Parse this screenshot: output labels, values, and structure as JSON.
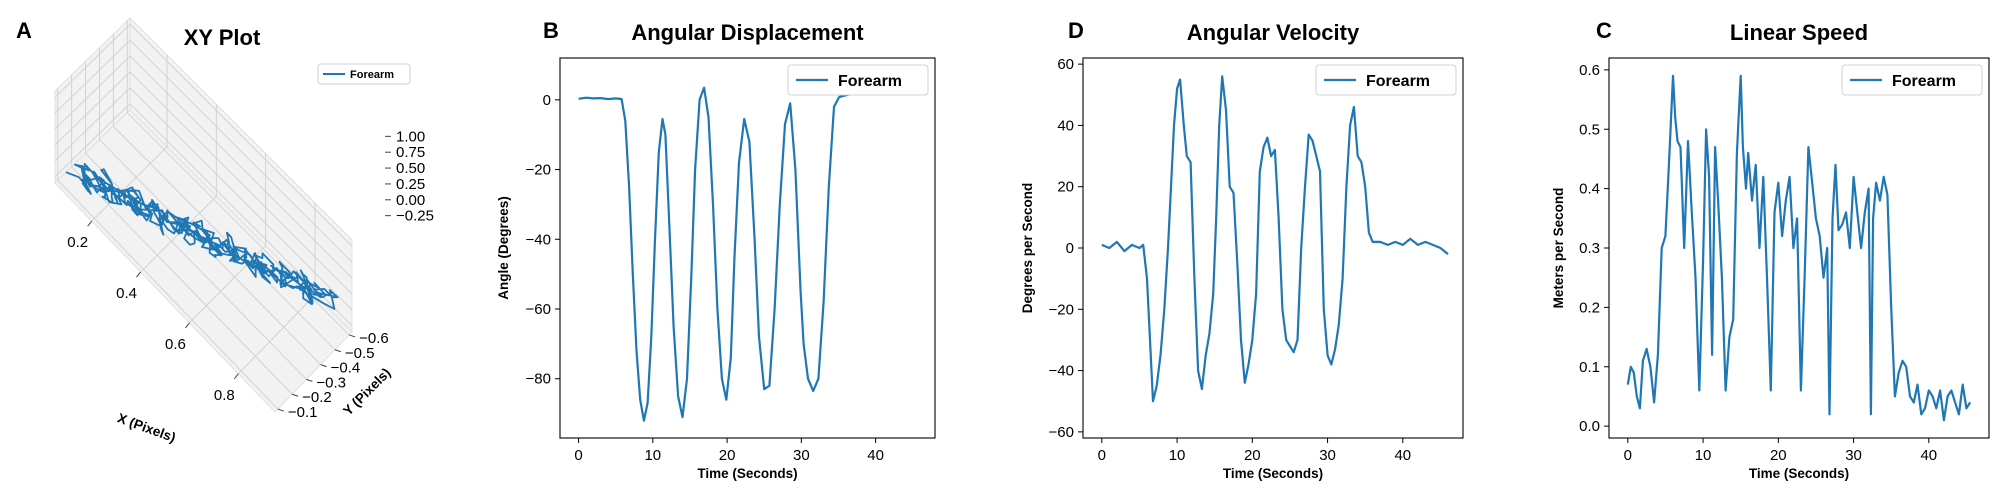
{
  "figure": {
    "line_color": "#1f77b4"
  },
  "chart_data": [
    {
      "panel_letter": "A",
      "type": "line",
      "projection": "3d",
      "title": "XY Plot",
      "xlabel": "X (Pixels)",
      "ylabel": "Y (Pixels)",
      "zlabel": "",
      "xlim": [
        0.05,
        0.95
      ],
      "ylim": [
        -0.62,
        -0.08
      ],
      "zlim": [
        -0.35,
        1.1
      ],
      "xticks": [
        0.2,
        0.4,
        0.6,
        0.8
      ],
      "xtick_labels": [
        "0.2",
        "0.4",
        "0.6",
        "0.8"
      ],
      "yticks": [
        -0.1,
        -0.2,
        -0.3,
        -0.4,
        -0.5,
        -0.6
      ],
      "ytick_labels": [
        "−0.1",
        "−0.2",
        "−0.3",
        "−0.4",
        "−0.5",
        "−0.6"
      ],
      "zticks": [
        1.0,
        0.75,
        0.5,
        0.25,
        0.0,
        -0.25
      ],
      "ztick_labels": [
        "1.00",
        "0.75",
        "0.50",
        "0.25",
        "0.00",
        "−0.25"
      ],
      "grid": true,
      "legend_position": "top-right",
      "series": [
        {
          "name": "Forearm",
          "path": {
            "start": [
              0.12,
              -0.12,
              0.0
            ],
            "end": [
              0.88,
              -0.58,
              0.0
            ],
            "samples": 420,
            "description_values": [
              0.12,
              0.88
            ]
          }
        }
      ]
    },
    {
      "panel_letter": "B",
      "type": "line",
      "title": "Angular Displacement",
      "xlabel": "Time (Seconds)",
      "ylabel": "Angle (Degrees)",
      "xlim": [
        -2.5,
        48
      ],
      "ylim": [
        -97,
        12
      ],
      "xticks": [
        0,
        10,
        20,
        30,
        40
      ],
      "yticks": [
        0,
        -20,
        -40,
        -60,
        -80
      ],
      "ytick_labels": [
        "0",
        "−20",
        "−40",
        "−60",
        "−80"
      ],
      "grid": false,
      "legend_position": "top-right",
      "series": [
        {
          "name": "Forearm",
          "x": [
            0,
            1,
            2,
            3,
            4,
            5,
            5.8,
            6.3,
            6.8,
            7.3,
            7.8,
            8.3,
            8.8,
            9.3,
            9.8,
            10.3,
            10.8,
            11.3,
            11.7,
            12.2,
            12.8,
            13.4,
            14.0,
            14.6,
            15.2,
            15.7,
            16.3,
            16.9,
            17.5,
            18.1,
            18.7,
            19.3,
            19.9,
            20.5,
            21.0,
            21.6,
            22.3,
            23.0,
            23.7,
            24.3,
            25.0,
            25.7,
            26.4,
            27.1,
            27.8,
            28.5,
            29.2,
            29.9,
            30.3,
            30.9,
            31.6,
            32.3,
            33.0,
            33.7,
            34.4,
            35.1,
            35.8,
            36.5,
            37.3,
            38.2,
            39.0,
            39.5,
            40.0,
            41.0
          ],
          "y": [
            0.3,
            0.6,
            0.4,
            0.5,
            0.2,
            0.4,
            0.2,
            -6,
            -25,
            -50,
            -72,
            -86,
            -92,
            -87,
            -68,
            -40,
            -15,
            -5.5,
            -10,
            -35,
            -65,
            -85,
            -91,
            -80,
            -50,
            -20,
            0,
            3.5,
            -5,
            -30,
            -60,
            -80,
            -86,
            -74,
            -45,
            -18,
            -5.5,
            -12,
            -40,
            -68,
            -83,
            -82,
            -60,
            -30,
            -7,
            -1,
            -20,
            -55,
            -70,
            -80,
            -83.5,
            -80,
            -58,
            -25,
            -2,
            0.8,
            1.2,
            1.6,
            2.1,
            2.6,
            3.1,
            3.4,
            3.7,
            4
          ]
        }
      ]
    },
    {
      "panel_letter": "D",
      "type": "line",
      "title": "Angular Velocity",
      "xlabel": "Time (Seconds)",
      "ylabel": "Degrees per Second",
      "xlim": [
        -2.5,
        48
      ],
      "ylim": [
        -62,
        62
      ],
      "xticks": [
        0,
        10,
        20,
        30,
        40
      ],
      "yticks": [
        60,
        40,
        20,
        0,
        -20,
        -40,
        -60
      ],
      "ytick_labels": [
        "60",
        "40",
        "20",
        "0",
        "−20",
        "−40",
        "−60"
      ],
      "grid": false,
      "legend_position": "top-right",
      "series": [
        {
          "name": "Forearm",
          "x": [
            0,
            1,
            2,
            3,
            4,
            5,
            5.5,
            6.0,
            6.4,
            6.8,
            7.3,
            7.8,
            8.3,
            8.8,
            9.2,
            9.6,
            10.0,
            10.4,
            10.9,
            11.3,
            11.8,
            12.3,
            12.8,
            13.3,
            13.8,
            14.3,
            14.8,
            15.2,
            15.6,
            16.0,
            16.5,
            17.0,
            17.5,
            18.0,
            18.5,
            19.0,
            19.5,
            20.0,
            20.5,
            21.0,
            21.5,
            22.0,
            22.5,
            23.0,
            23.5,
            24.0,
            24.5,
            25.0,
            25.5,
            26.0,
            26.5,
            27.0,
            27.5,
            28.0,
            28.5,
            29.0,
            29.5,
            30.0,
            30.5,
            31.0,
            31.5,
            32.0,
            32.5,
            33.0,
            33.5,
            34.0,
            34.5,
            35.0,
            35.5,
            36.0,
            37,
            38,
            39,
            40,
            41,
            42,
            43,
            44,
            45,
            46
          ],
          "y": [
            1,
            0,
            2,
            -1,
            1,
            0,
            1,
            -10,
            -30,
            -50,
            -45,
            -35,
            -20,
            0,
            20,
            40,
            52,
            55,
            40,
            30,
            28,
            -10,
            -40,
            -46,
            -35,
            -28,
            -15,
            10,
            40,
            56,
            45,
            20,
            18,
            -5,
            -30,
            -44,
            -38,
            -30,
            -15,
            25,
            33,
            36,
            30,
            32,
            10,
            -20,
            -30,
            -32,
            -34,
            -30,
            0,
            20,
            37,
            35,
            30,
            25,
            -20,
            -35,
            -38,
            -33,
            -25,
            -10,
            20,
            40,
            46,
            30,
            28,
            20,
            5,
            2,
            2,
            1,
            2,
            1,
            3,
            1,
            2,
            1,
            0,
            -2
          ]
        }
      ]
    },
    {
      "panel_letter": "C",
      "type": "line",
      "title": "Linear Speed",
      "xlabel": "Time (Seconds)",
      "ylabel": "Meters per Second",
      "xlim": [
        -2.5,
        48
      ],
      "ylim": [
        -0.02,
        0.62
      ],
      "xticks": [
        0,
        10,
        20,
        30,
        40
      ],
      "yticks": [
        0.6,
        0.5,
        0.4,
        0.3,
        0.2,
        0.1,
        0.0
      ],
      "ytick_labels": [
        "0.6",
        "0.5",
        "0.4",
        "0.3",
        "0.2",
        "0.1",
        "0.0"
      ],
      "grid": false,
      "legend_position": "top-right",
      "series": [
        {
          "name": "Forearm",
          "x": [
            0,
            0.4,
            0.8,
            1.2,
            1.6,
            2.0,
            2.5,
            3.0,
            3.5,
            4.0,
            4.5,
            5.0,
            5.5,
            6.0,
            6.3,
            6.6,
            7.0,
            7.5,
            8.0,
            8.5,
            9.0,
            9.5,
            10.0,
            10.4,
            10.8,
            11.2,
            11.6,
            12.0,
            12.5,
            13.0,
            13.5,
            14.0,
            14.5,
            15.0,
            15.3,
            15.7,
            16.0,
            16.5,
            17.0,
            17.5,
            18.0,
            18.5,
            19.0,
            19.5,
            20.0,
            20.5,
            21.0,
            21.5,
            22.0,
            22.5,
            23.0,
            23.5,
            24.0,
            24.5,
            25.0,
            25.5,
            26.0,
            26.5,
            26.8,
            27.2,
            27.6,
            28.0,
            28.5,
            29.0,
            29.5,
            30.0,
            30.5,
            31.0,
            31.5,
            32.0,
            32.3,
            32.6,
            33.0,
            33.5,
            34.0,
            34.5,
            35.0,
            35.5,
            36.0,
            36.5,
            37.0,
            37.5,
            38.0,
            38.5,
            39.0,
            39.5,
            40.0,
            40.5,
            41.0,
            41.5,
            42.0,
            42.5,
            43.0,
            43.5,
            44.0,
            44.5,
            45.0,
            45.5
          ],
          "y": [
            0.07,
            0.1,
            0.09,
            0.05,
            0.03,
            0.11,
            0.13,
            0.1,
            0.04,
            0.12,
            0.3,
            0.32,
            0.45,
            0.59,
            0.52,
            0.48,
            0.47,
            0.3,
            0.48,
            0.36,
            0.25,
            0.06,
            0.28,
            0.5,
            0.42,
            0.12,
            0.47,
            0.38,
            0.25,
            0.06,
            0.15,
            0.18,
            0.46,
            0.59,
            0.47,
            0.4,
            0.46,
            0.38,
            0.44,
            0.3,
            0.42,
            0.25,
            0.06,
            0.36,
            0.41,
            0.32,
            0.38,
            0.42,
            0.3,
            0.35,
            0.06,
            0.25,
            0.47,
            0.41,
            0.35,
            0.32,
            0.25,
            0.3,
            0.02,
            0.35,
            0.44,
            0.33,
            0.34,
            0.36,
            0.3,
            0.42,
            0.36,
            0.3,
            0.36,
            0.4,
            0.02,
            0.35,
            0.41,
            0.38,
            0.42,
            0.39,
            0.2,
            0.05,
            0.09,
            0.11,
            0.1,
            0.05,
            0.04,
            0.07,
            0.02,
            0.03,
            0.06,
            0.05,
            0.03,
            0.06,
            0.01,
            0.05,
            0.06,
            0.04,
            0.02,
            0.07,
            0.03,
            0.04
          ]
        }
      ]
    }
  ]
}
